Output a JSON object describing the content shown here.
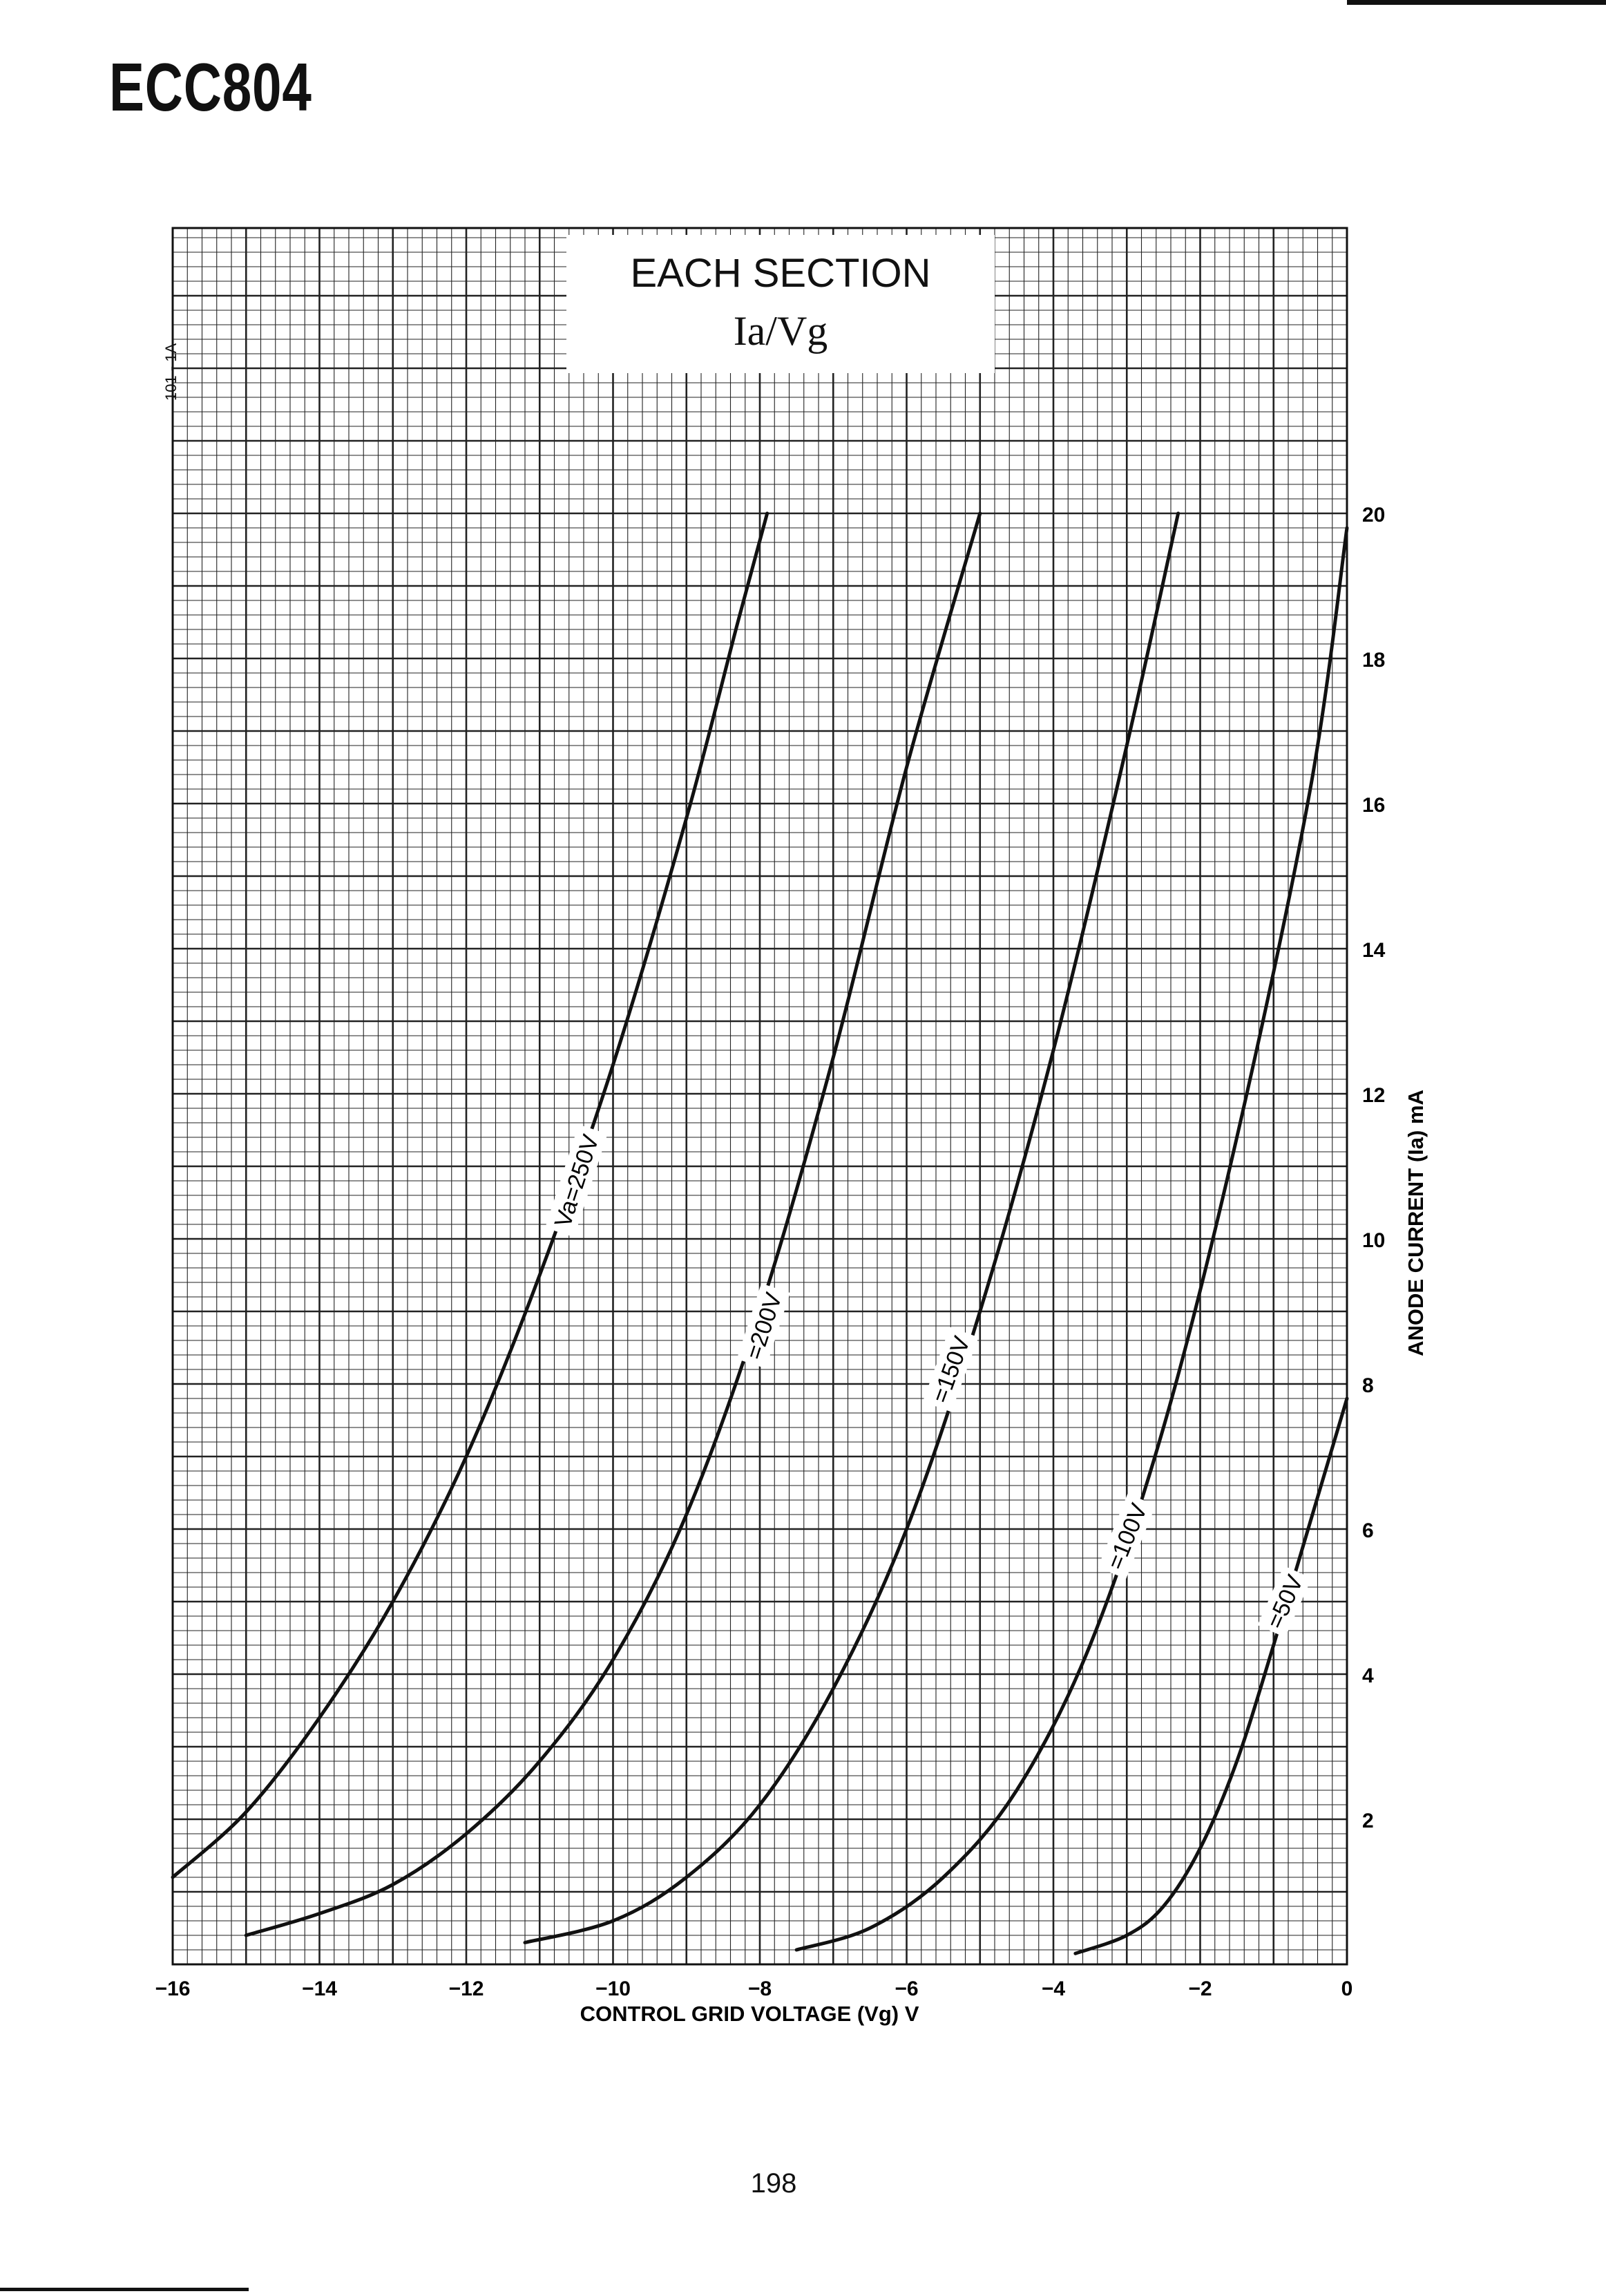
{
  "document": {
    "title": "ECC804",
    "page_number": "198",
    "side_code": "101 - 1A"
  },
  "chart_data": {
    "type": "line",
    "title": "EACH SECTION",
    "subtitle": "Ia/Vg",
    "xlabel": "CONTROL GRID VOLTAGE (Vg) V",
    "ylabel": "ANODE CURRENT (Ia) mA",
    "xlim": [
      -16,
      0
    ],
    "ylim": [
      0,
      20
    ],
    "x_ticks": [
      "-16",
      "-14",
      "-12",
      "-10",
      "-8",
      "-6",
      "-4",
      "-2",
      "0"
    ],
    "y_ticks": [
      "2",
      "4",
      "6",
      "8",
      "10",
      "12",
      "14",
      "16",
      "18",
      "20"
    ],
    "grid": true,
    "series": [
      {
        "name": "Va=250V",
        "points": [
          [
            -16.0,
            1.2
          ],
          [
            -15.0,
            2.1
          ],
          [
            -14.0,
            3.4
          ],
          [
            -13.0,
            5.0
          ],
          [
            -12.0,
            7.0
          ],
          [
            -11.0,
            9.5
          ],
          [
            -10.0,
            12.4
          ],
          [
            -9.0,
            15.8
          ],
          [
            -8.3,
            18.5
          ],
          [
            -7.9,
            20.0
          ]
        ]
      },
      {
        "name": "=200V",
        "points": [
          [
            -15.0,
            0.4
          ],
          [
            -14.0,
            0.7
          ],
          [
            -13.0,
            1.1
          ],
          [
            -12.0,
            1.8
          ],
          [
            -11.0,
            2.8
          ],
          [
            -10.0,
            4.2
          ],
          [
            -9.0,
            6.2
          ],
          [
            -8.0,
            9.0
          ],
          [
            -7.0,
            12.5
          ],
          [
            -6.0,
            16.5
          ],
          [
            -5.0,
            20.0
          ]
        ]
      },
      {
        "name": "=150V",
        "points": [
          [
            -11.2,
            0.3
          ],
          [
            -10.0,
            0.6
          ],
          [
            -9.0,
            1.2
          ],
          [
            -8.0,
            2.2
          ],
          [
            -7.0,
            3.8
          ],
          [
            -6.0,
            6.0
          ],
          [
            -5.0,
            9.0
          ],
          [
            -4.0,
            12.6
          ],
          [
            -3.0,
            16.8
          ],
          [
            -2.3,
            20.0
          ]
        ]
      },
      {
        "name": "=100V",
        "points": [
          [
            -7.5,
            0.2
          ],
          [
            -6.5,
            0.5
          ],
          [
            -5.5,
            1.2
          ],
          [
            -4.5,
            2.4
          ],
          [
            -3.5,
            4.4
          ],
          [
            -2.5,
            7.4
          ],
          [
            -1.5,
            11.4
          ],
          [
            -0.5,
            16.2
          ],
          [
            0.0,
            19.8
          ]
        ]
      },
      {
        "name": "=50V",
        "points": [
          [
            -3.7,
            0.15
          ],
          [
            -3.0,
            0.4
          ],
          [
            -2.5,
            0.8
          ],
          [
            -2.0,
            1.6
          ],
          [
            -1.5,
            2.8
          ],
          [
            -1.0,
            4.4
          ],
          [
            -0.5,
            6.1
          ],
          [
            0.0,
            7.8
          ]
        ]
      }
    ],
    "curve_labels": [
      "Va=250V",
      "=200V",
      "=150V",
      "=100V",
      "=50V"
    ]
  }
}
